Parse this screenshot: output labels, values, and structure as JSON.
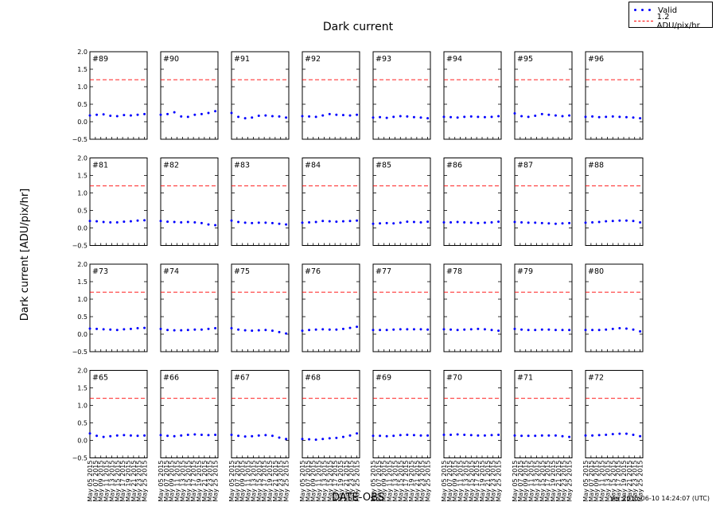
{
  "chart_data": {
    "type": "scatter",
    "title": "Dark current",
    "ylabel": "Dark current [ADU/pix/hr]",
    "xlabel": "DATE-OBS",
    "footer": "Ver 2015-06-10 14:24:07 (UTC)",
    "ylim": [
      -0.5,
      2.0
    ],
    "yticks": [
      "2.0",
      "1.5",
      "1.0",
      "0.5",
      "0.0",
      "−0.5"
    ],
    "ytick_values": [
      2.0,
      1.5,
      1.0,
      0.5,
      0.0,
      -0.5
    ],
    "xlim_days": [
      5,
      26
    ],
    "xticks": [
      "May 05 2015",
      "May 07 2015",
      "May 09 2015",
      "May 11 2015",
      "May 13 2015",
      "May 15 2015",
      "May 17 2015",
      "May 19 2015",
      "May 21 2015",
      "May 23 2015",
      "May 25 2015"
    ],
    "xtick_days": [
      5,
      7,
      9,
      11,
      13,
      15,
      17,
      19,
      21,
      23,
      25
    ],
    "threshold": 1.2,
    "legend": {
      "valid": "Valid",
      "threshold": "1.2 ADU/pix/hr"
    },
    "colors": {
      "points": "#0000ff",
      "threshold": "#ff0000"
    },
    "panels": [
      {
        "label": "#89",
        "x": [
          5,
          7.5,
          10,
          12.5,
          15,
          17.5,
          20,
          22.5,
          25
        ],
        "y": [
          0.18,
          0.2,
          0.21,
          0.17,
          0.16,
          0.19,
          0.18,
          0.2,
          0.22
        ]
      },
      {
        "label": "#90",
        "x": [
          5,
          7.5,
          10,
          12.5,
          15,
          17.5,
          20,
          22.5,
          25
        ],
        "y": [
          0.2,
          0.22,
          0.27,
          0.15,
          0.14,
          0.2,
          0.22,
          0.25,
          0.3
        ]
      },
      {
        "label": "#91",
        "x": [
          5,
          7.5,
          10,
          12.5,
          15,
          17.5,
          20,
          22.5,
          25
        ],
        "y": [
          0.25,
          0.14,
          0.1,
          0.12,
          0.17,
          0.18,
          0.16,
          0.15,
          0.12
        ]
      },
      {
        "label": "#92",
        "x": [
          5,
          7.5,
          10,
          12.5,
          15,
          17.5,
          20,
          22.5,
          25
        ],
        "y": [
          0.16,
          0.15,
          0.14,
          0.18,
          0.22,
          0.2,
          0.19,
          0.18,
          0.2
        ]
      },
      {
        "label": "#93",
        "x": [
          5,
          7.5,
          10,
          12.5,
          15,
          17.5,
          20,
          22.5,
          25
        ],
        "y": [
          0.12,
          0.13,
          0.11,
          0.14,
          0.16,
          0.15,
          0.13,
          0.12,
          0.1
        ]
      },
      {
        "label": "#94",
        "x": [
          5,
          7.5,
          10,
          12.5,
          15,
          17.5,
          20,
          22.5,
          25
        ],
        "y": [
          0.14,
          0.13,
          0.12,
          0.14,
          0.15,
          0.14,
          0.13,
          0.14,
          0.16
        ]
      },
      {
        "label": "#95",
        "x": [
          5,
          7.5,
          10,
          12.5,
          15,
          17.5,
          20,
          22.5,
          25
        ],
        "y": [
          0.24,
          0.16,
          0.14,
          0.17,
          0.22,
          0.2,
          0.18,
          0.16,
          0.18
        ]
      },
      {
        "label": "#96",
        "x": [
          5,
          7.5,
          10,
          12.5,
          15,
          17.5,
          20,
          22.5,
          25
        ],
        "y": [
          0.14,
          0.15,
          0.13,
          0.14,
          0.15,
          0.14,
          0.13,
          0.12,
          0.1
        ]
      },
      {
        "label": "#81",
        "x": [
          5,
          7.5,
          10,
          12.5,
          15,
          17.5,
          20,
          22.5,
          25
        ],
        "y": [
          0.2,
          0.19,
          0.17,
          0.16,
          0.16,
          0.18,
          0.19,
          0.21,
          0.22
        ]
      },
      {
        "label": "#82",
        "x": [
          5,
          7.5,
          10,
          12.5,
          15,
          17.5,
          20,
          22.5,
          25
        ],
        "y": [
          0.2,
          0.18,
          0.17,
          0.16,
          0.17,
          0.16,
          0.14,
          0.1,
          0.08
        ]
      },
      {
        "label": "#83",
        "x": [
          5,
          7.5,
          10,
          12.5,
          15,
          17.5,
          20,
          22.5,
          25
        ],
        "y": [
          0.21,
          0.17,
          0.15,
          0.14,
          0.15,
          0.15,
          0.14,
          0.12,
          0.1
        ]
      },
      {
        "label": "#84",
        "x": [
          5,
          7.5,
          10,
          12.5,
          15,
          17.5,
          20,
          22.5,
          25
        ],
        "y": [
          0.15,
          0.16,
          0.17,
          0.2,
          0.19,
          0.18,
          0.19,
          0.2,
          0.21
        ]
      },
      {
        "label": "#85",
        "x": [
          5,
          7.5,
          10,
          12.5,
          15,
          17.5,
          20,
          22.5,
          25
        ],
        "y": [
          0.12,
          0.13,
          0.14,
          0.13,
          0.15,
          0.18,
          0.17,
          0.16,
          0.18
        ]
      },
      {
        "label": "#86",
        "x": [
          5,
          7.5,
          10,
          12.5,
          15,
          17.5,
          20,
          22.5,
          25
        ],
        "y": [
          0.16,
          0.16,
          0.17,
          0.16,
          0.15,
          0.14,
          0.15,
          0.16,
          0.18
        ]
      },
      {
        "label": "#87",
        "x": [
          5,
          7.5,
          10,
          12.5,
          15,
          17.5,
          20,
          22.5,
          25
        ],
        "y": [
          0.17,
          0.16,
          0.15,
          0.15,
          0.14,
          0.13,
          0.12,
          0.13,
          0.14
        ]
      },
      {
        "label": "#88",
        "x": [
          5,
          7.5,
          10,
          12.5,
          15,
          17.5,
          20,
          22.5,
          25
        ],
        "y": [
          0.15,
          0.16,
          0.17,
          0.19,
          0.2,
          0.21,
          0.21,
          0.2,
          0.16
        ]
      },
      {
        "label": "#73",
        "x": [
          5,
          7.5,
          10,
          12.5,
          15,
          17.5,
          20,
          22.5,
          25
        ],
        "y": [
          0.16,
          0.15,
          0.14,
          0.13,
          0.12,
          0.14,
          0.15,
          0.17,
          0.18
        ]
      },
      {
        "label": "#74",
        "x": [
          5,
          7.5,
          10,
          12.5,
          15,
          17.5,
          20,
          22.5,
          25
        ],
        "y": [
          0.15,
          0.12,
          0.11,
          0.11,
          0.12,
          0.13,
          0.13,
          0.15,
          0.17
        ]
      },
      {
        "label": "#75",
        "x": [
          5,
          7.5,
          10,
          12.5,
          15,
          17.5,
          20,
          22.5,
          25
        ],
        "y": [
          0.17,
          0.13,
          0.11,
          0.1,
          0.11,
          0.12,
          0.1,
          0.06,
          0.02
        ]
      },
      {
        "label": "#76",
        "x": [
          5,
          7.5,
          10,
          12.5,
          15,
          17.5,
          20,
          22.5,
          25
        ],
        "y": [
          0.1,
          0.12,
          0.13,
          0.14,
          0.13,
          0.13,
          0.15,
          0.18,
          0.21
        ]
      },
      {
        "label": "#77",
        "x": [
          5,
          7.5,
          10,
          12.5,
          15,
          17.5,
          20,
          22.5,
          25
        ],
        "y": [
          0.12,
          0.12,
          0.12,
          0.13,
          0.14,
          0.14,
          0.14,
          0.14,
          0.13
        ]
      },
      {
        "label": "#78",
        "x": [
          5,
          7.5,
          10,
          12.5,
          15,
          17.5,
          20,
          22.5,
          25
        ],
        "y": [
          0.14,
          0.13,
          0.12,
          0.13,
          0.14,
          0.15,
          0.14,
          0.12,
          0.1
        ]
      },
      {
        "label": "#79",
        "x": [
          5,
          7.5,
          10,
          12.5,
          15,
          17.5,
          20,
          22.5,
          25
        ],
        "y": [
          0.15,
          0.13,
          0.12,
          0.12,
          0.13,
          0.13,
          0.12,
          0.12,
          0.12
        ]
      },
      {
        "label": "#80",
        "x": [
          5,
          7.5,
          10,
          12.5,
          15,
          17.5,
          20,
          22.5,
          25
        ],
        "y": [
          0.12,
          0.12,
          0.12,
          0.13,
          0.15,
          0.17,
          0.16,
          0.13,
          0.08
        ]
      },
      {
        "label": "#65",
        "x": [
          5,
          7.5,
          10,
          12.5,
          15,
          17.5,
          20,
          22.5,
          25
        ],
        "y": [
          0.2,
          0.13,
          0.1,
          0.12,
          0.14,
          0.15,
          0.14,
          0.13,
          0.14
        ]
      },
      {
        "label": "#66",
        "x": [
          5,
          7.5,
          10,
          12.5,
          15,
          17.5,
          20,
          22.5,
          25
        ],
        "y": [
          0.15,
          0.13,
          0.12,
          0.14,
          0.16,
          0.17,
          0.16,
          0.15,
          0.16
        ]
      },
      {
        "label": "#67",
        "x": [
          5,
          7.5,
          10,
          12.5,
          15,
          17.5,
          20,
          22.5,
          25
        ],
        "y": [
          0.16,
          0.13,
          0.11,
          0.12,
          0.14,
          0.15,
          0.13,
          0.08,
          0.04
        ]
      },
      {
        "label": "#68",
        "x": [
          5,
          7.5,
          10,
          12.5,
          15,
          17.5,
          20,
          22.5,
          25
        ],
        "y": [
          0.04,
          0.03,
          0.02,
          0.04,
          0.06,
          0.07,
          0.1,
          0.14,
          0.2
        ]
      },
      {
        "label": "#69",
        "x": [
          5,
          7.5,
          10,
          12.5,
          15,
          17.5,
          20,
          22.5,
          25
        ],
        "y": [
          0.13,
          0.13,
          0.12,
          0.13,
          0.15,
          0.16,
          0.15,
          0.14,
          0.14
        ]
      },
      {
        "label": "#70",
        "x": [
          5,
          7.5,
          10,
          12.5,
          15,
          17.5,
          20,
          22.5,
          25
        ],
        "y": [
          0.16,
          0.16,
          0.17,
          0.16,
          0.15,
          0.14,
          0.14,
          0.15,
          0.16
        ]
      },
      {
        "label": "#71",
        "x": [
          5,
          7.5,
          10,
          12.5,
          15,
          17.5,
          20,
          22.5,
          25
        ],
        "y": [
          0.14,
          0.13,
          0.13,
          0.13,
          0.14,
          0.14,
          0.14,
          0.12,
          0.1
        ]
      },
      {
        "label": "#72",
        "x": [
          5,
          7.5,
          10,
          12.5,
          15,
          17.5,
          20,
          22.5,
          25
        ],
        "y": [
          0.14,
          0.14,
          0.15,
          0.16,
          0.18,
          0.19,
          0.19,
          0.16,
          0.12
        ]
      }
    ]
  }
}
